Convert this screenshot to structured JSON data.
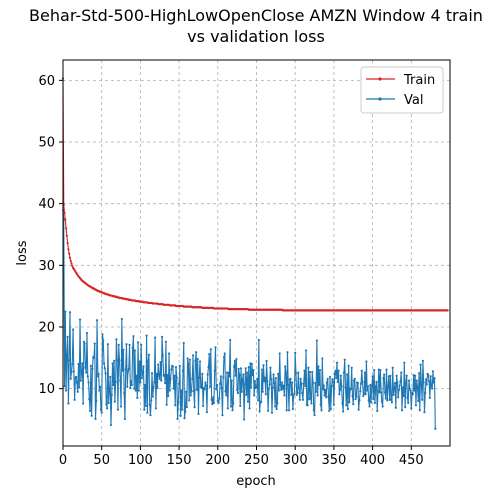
{
  "chart_data": {
    "type": "line",
    "title_lines": [
      "Behar-Std-500-HighLowOpenClose AMZN Window 4 train",
      "vs validation loss"
    ],
    "xlabel": "epoch",
    "ylabel": "loss",
    "xlim": [
      0,
      500
    ],
    "ylim": [
      0.7,
      63.3
    ],
    "xticks": [
      0,
      50,
      100,
      150,
      200,
      250,
      300,
      350,
      400,
      450
    ],
    "xtick_labels": [
      "0",
      "50",
      "100",
      "150",
      "200",
      "250",
      "300",
      "350",
      "400",
      "450"
    ],
    "yticks": [
      10,
      20,
      30,
      40,
      50,
      60
    ],
    "ytick_labels": [
      "10",
      "20",
      "30",
      "40",
      "50",
      "60"
    ],
    "grid": true,
    "legend_position": "top-right",
    "series": [
      {
        "name": "Train",
        "color": "#d62728",
        "x_start": 0,
        "x_step": 1,
        "values": [
          60.3,
          39.8,
          38.5,
          37.4,
          36.0,
          34.8,
          33.6,
          32.6,
          31.9,
          31.2,
          30.7,
          30.3,
          29.9,
          29.6,
          29.4,
          29.2,
          29.0,
          28.8,
          28.6,
          28.4,
          28.2,
          28.1,
          27.9,
          27.8,
          27.6,
          27.5,
          27.4,
          27.3,
          27.2,
          27.1,
          27.0,
          26.9,
          26.8,
          26.7,
          26.6,
          26.6,
          26.5,
          26.4,
          26.3,
          26.3,
          26.2,
          26.1,
          26.1,
          26.0,
          25.9,
          25.9,
          25.8,
          25.8,
          25.7,
          25.7,
          25.6,
          25.6,
          25.5,
          25.5,
          25.4,
          25.4,
          25.3,
          25.3,
          25.3,
          25.2,
          25.2,
          25.1,
          25.1,
          25.1,
          25.0,
          25.0,
          25.0,
          24.9,
          24.9,
          24.9,
          24.8,
          24.8,
          24.8,
          24.7,
          24.7,
          24.7,
          24.7,
          24.6,
          24.6,
          24.6,
          24.6,
          24.5,
          24.5,
          24.5,
          24.5,
          24.4,
          24.4,
          24.4,
          24.4,
          24.3,
          24.3,
          24.3,
          24.3,
          24.3,
          24.2,
          24.2,
          24.2,
          24.2,
          24.2,
          24.1,
          24.1,
          24.1,
          24.1,
          24.1,
          24.0,
          24.0,
          24.0,
          24.0,
          24.0,
          24.0,
          23.9,
          23.9,
          23.9,
          23.9,
          23.9,
          23.9,
          23.8,
          23.8,
          23.8,
          23.8,
          23.8,
          23.8,
          23.8,
          23.7,
          23.7,
          23.7,
          23.7,
          23.7,
          23.7,
          23.7,
          23.6,
          23.6,
          23.6,
          23.6,
          23.6,
          23.6,
          23.6,
          23.6,
          23.5,
          23.5,
          23.5,
          23.5,
          23.5,
          23.5,
          23.5,
          23.5,
          23.4,
          23.4,
          23.4,
          23.4,
          23.4,
          23.4,
          23.4,
          23.4,
          23.4,
          23.4,
          23.3,
          23.3,
          23.3,
          23.3,
          23.3,
          23.3,
          23.3,
          23.3,
          23.3,
          23.3,
          23.3,
          23.2,
          23.2,
          23.2,
          23.2,
          23.2,
          23.2,
          23.2,
          23.2,
          23.2,
          23.2,
          23.2,
          23.2,
          23.2,
          23.1,
          23.1,
          23.1,
          23.1,
          23.1,
          23.1,
          23.1,
          23.1,
          23.1,
          23.1,
          23.1,
          23.1,
          23.1,
          23.1,
          23.1,
          23.0,
          23.0,
          23.0,
          23.0,
          23.0,
          23.0,
          23.0,
          23.0,
          23.0,
          23.0,
          23.0,
          23.0,
          23.0,
          23.0,
          23.0,
          23.0,
          23.0,
          23.0,
          23.0,
          22.9,
          22.9,
          22.9,
          22.9,
          22.9,
          22.9,
          22.9,
          22.9,
          22.9,
          22.9,
          22.9,
          22.9,
          22.9,
          22.9,
          22.9,
          22.9,
          22.9,
          22.9,
          22.9,
          22.9,
          22.9,
          22.9,
          22.9,
          22.9,
          22.9,
          22.9,
          22.8,
          22.8,
          22.8,
          22.8,
          22.8,
          22.8,
          22.8,
          22.8,
          22.8,
          22.8,
          22.8,
          22.8,
          22.8,
          22.8,
          22.8,
          22.8,
          22.8,
          22.8,
          22.8,
          22.8,
          22.8,
          22.8,
          22.8,
          22.8,
          22.8,
          22.8,
          22.8,
          22.8,
          22.8,
          22.8,
          22.8,
          22.8,
          22.8,
          22.8,
          22.8,
          22.8,
          22.8,
          22.8,
          22.8,
          22.8,
          22.8,
          22.8,
          22.8,
          22.8,
          22.7,
          22.7,
          22.7,
          22.7,
          22.7,
          22.7,
          22.7,
          22.7,
          22.7,
          22.7,
          22.7,
          22.7,
          22.7,
          22.7,
          22.7,
          22.7,
          22.7,
          22.7,
          22.7,
          22.7,
          22.7,
          22.7,
          22.7,
          22.7,
          22.7,
          22.7,
          22.7,
          22.7,
          22.7,
          22.7,
          22.7,
          22.7,
          22.7,
          22.7,
          22.7,
          22.7,
          22.7,
          22.7,
          22.7,
          22.7,
          22.7,
          22.7,
          22.7,
          22.7,
          22.7,
          22.7,
          22.7,
          22.7,
          22.7,
          22.7,
          22.7,
          22.7,
          22.7,
          22.7,
          22.7,
          22.7,
          22.7,
          22.7,
          22.7,
          22.7,
          22.7,
          22.7,
          22.7,
          22.7,
          22.7,
          22.7,
          22.7,
          22.7,
          22.7,
          22.7,
          22.7,
          22.7,
          22.7,
          22.7,
          22.7,
          22.7,
          22.7,
          22.7,
          22.7,
          22.7,
          22.7,
          22.7,
          22.7,
          22.7,
          22.7,
          22.7,
          22.7,
          22.7,
          22.7,
          22.7,
          22.7,
          22.7,
          22.7,
          22.7,
          22.7,
          22.7,
          22.7,
          22.7,
          22.7,
          22.7,
          22.7,
          22.7,
          22.7,
          22.7,
          22.7,
          22.7,
          22.7,
          22.7,
          22.7,
          22.7,
          22.7,
          22.7,
          22.7,
          22.7,
          22.7,
          22.7,
          22.7,
          22.7,
          22.7,
          22.7,
          22.7,
          22.7,
          22.7,
          22.7,
          22.7,
          22.7,
          22.7,
          22.7,
          22.7,
          22.7,
          22.7,
          22.7,
          22.7,
          22.7,
          22.7,
          22.7,
          22.7,
          22.7,
          22.7,
          22.7,
          22.7,
          22.7,
          22.7,
          22.7,
          22.7,
          22.7,
          22.7,
          22.7,
          22.7,
          22.7,
          22.7,
          22.7,
          22.7,
          22.7,
          22.7,
          22.7,
          22.7,
          22.7,
          22.7,
          22.7,
          22.7,
          22.7,
          22.7,
          22.7,
          22.7,
          22.7,
          22.7,
          22.7,
          22.7,
          22.7,
          22.7,
          22.7,
          22.7,
          22.7,
          22.7,
          22.7,
          22.7,
          22.7,
          22.7,
          22.7,
          22.7,
          22.7,
          22.7,
          22.7,
          22.7,
          22.7,
          22.7,
          22.7,
          22.7,
          22.7,
          22.7,
          22.7,
          22.7,
          22.7,
          22.7,
          22.7,
          22.7,
          22.7,
          22.7,
          22.7,
          22.7,
          22.7,
          22.7,
          22.7,
          22.7,
          22.7,
          22.7,
          22.7,
          22.7,
          22.7,
          22.7,
          22.7,
          22.7,
          22.7
        ]
      },
      {
        "name": "Val",
        "color": "#1f77b4",
        "x_start": 0,
        "x_step": 1,
        "values": [
          38.9,
          37.5,
          10.4,
          22.5,
          9.7,
          15.6,
          18.4,
          7.6,
          14.6,
          22.4,
          11.6,
          12.7,
          14.0,
          19.6,
          12.8,
          8.2,
          11.8,
          11.9,
          11.0,
          9.5,
          14.0,
          10.2,
          21.2,
          11.3,
          12.6,
          14.1,
          7.6,
          17.6,
          17.3,
          13.4,
          12.6,
          19.0,
          12.0,
          11.0,
          8.3,
          6.4,
          13.7,
          5.6,
          13.2,
          15.1,
          15.0,
          17.3,
          5.1,
          8.0,
          21.1,
          12.0,
          12.4,
          9.7,
          10.3,
          6.6,
          6.1,
          18.8,
          17.8,
          14.1,
          13.3,
          12.5,
          7.5,
          6.8,
          17.2,
          7.7,
          9.6,
          11.9,
          4.1,
          9.0,
          14.1,
          10.6,
          14.5,
          7.9,
          11.1,
          18.0,
          14.6,
          6.6,
          17.1,
          14.6,
          11.3,
          7.1,
          21.3,
          12.9,
          16.3,
          9.3,
          5.1,
          13.1,
          17.2,
          10.3,
          12.8,
          13.2,
          17.1,
          10.1,
          11.2,
          10.6,
          16.6,
          18.5,
          10.0,
          16.2,
          9.7,
          12.1,
          8.5,
          17.5,
          9.7,
          14.4,
          11.0,
          17.1,
          11.7,
          12.6,
          13.6,
          6.6,
          10.6,
          7.2,
          18.6,
          6.1,
          14.5,
          15.5,
          7.4,
          5.7,
          8.1,
          12.5,
          8.7,
          10.3,
          11.0,
          18.3,
          6.8,
          12.4,
          10.1,
          13.9,
          12.1,
          11.6,
          14.3,
          11.3,
          18.4,
          15.4,
          12.1,
          12.2,
          10.9,
          17.6,
          7.4,
          12.2,
          8.8,
          15.7,
          9.7,
          11.6,
          13.1,
          13.7,
          13.6,
          10.0,
          12.1,
          7.3,
          13.5,
          11.8,
          5.1,
          7.9,
          10.8,
          13.7,
          5.6,
          9.7,
          6.6,
          12.9,
          17.4,
          5.2,
          6.3,
          9.5,
          7.0,
          14.9,
          14.0,
          8.1,
          14.7,
          8.9,
          9.6,
          11.6,
          15.4,
          9.6,
          7.0,
          14.5,
          15.9,
          9.8,
          14.8,
          5.9,
          11.8,
          14.4,
          10.3,
          10.1,
          12.4,
          7.2,
          10.1,
          9.9,
          11.0,
          10.5,
          6.2,
          12.3,
          13.5,
          15.6,
          10.3,
          16.4,
          8.2,
          7.5,
          8.6,
          7.7,
          12.9,
          16.7,
          9.9,
          10.6,
          8.0,
          7.7,
          8.4,
          10.8,
          12.0,
          10.1,
          5.7,
          11.8,
          15.1,
          15.7,
          9.6,
          8.9,
          12.6,
          6.8,
          12.6,
          12.0,
          17.9,
          7.1,
          11.3,
          6.5,
          7.6,
          13.6,
          14.5,
          12.1,
          14.8,
          9.8,
          9.3,
          13.2,
          12.2,
          7.2,
          13.3,
          9.5,
          11.5,
          12.3,
          5.0,
          10.7,
          13.3,
          9.0,
          12.6,
          7.9,
          13.5,
          6.8,
          14.1,
          10.2,
          14.0,
          12.2,
          13.0,
          8.9,
          11.2,
          10.1,
          10.2,
          11.6,
          8.1,
          17.9,
          6.3,
          7.9,
          7.8,
          13.1,
          9.5,
          13.8,
          11.2,
          11.8,
          9.1,
          14.5,
          11.2,
          6.4,
          10.0,
          10.7,
          13.4,
          11.5,
          6.1,
          10.2,
          12.3,
          10.9,
          7.1,
          11.7,
          6.7,
          7.7,
          12.4,
          9.7,
          15.7,
          10.6,
          9.8,
          11.0,
          10.0,
          10.5,
          8.9,
          13.6,
          12.6,
          6.5,
          15.9,
          10.6,
          6.5,
          11.5,
          11.6,
          9.0,
          11.0,
          6.7,
          8.9,
          9.2,
          15.8,
          12.5,
          9.0,
          9.3,
          12.6,
          10.2,
          8.2,
          11.6,
          10.8,
          9.3,
          8.2,
          10.8,
          12.9,
          10.4,
          16.2,
          7.4,
          7.3,
          13.4,
          8.3,
          12.7,
          8.5,
          7.6,
          12.7,
          11.0,
          6.5,
          5.7,
          10.9,
          9.5,
          17.8,
          8.9,
          13.6,
          10.6,
          13.0,
          7.4,
          6.5,
          14.9,
          9.9,
          10.5,
          8.9,
          9.8,
          8.6,
          11.0,
          11.6,
          8.7,
          6.4,
          11.9,
          6.7,
          10.4,
          11.5,
          11.1,
          7.4,
          12.4,
          12.9,
          11.7,
          14.2,
          11.1,
          12.9,
          9.1,
          9.8,
          12.1,
          10.4,
          7.6,
          6.3,
          12.6,
          14.7,
          10.2,
          7.3,
          12.3,
          6.7,
          13.7,
          7.8,
          10.0,
          9.9,
          13.4,
          8.8,
          7.5,
          11.3,
          11.6,
          8.3,
          8.7,
          11.0,
          10.9,
          6.6,
          8.1,
          9.6,
          10.8,
          12.9,
          11.1,
          8.8,
          9.2,
          12.6,
          9.1,
          14.4,
          9.7,
          10.4,
          8.1,
          7.1,
          10.6,
          7.8,
          10.4,
          12.0,
          8.3,
          13.0,
          7.7,
          10.3,
          11.1,
          6.4,
          9.6,
          13.1,
          9.4,
          13.0,
          9.4,
          7.9,
          7.1,
          11.7,
          12.3,
          9.4,
          8.4,
          13.1,
          8.1,
          10.4,
          12.0,
          8.2,
          12.1,
          8.2,
          7.8,
          13.4,
          9.0,
          10.0,
          10.9,
          6.9,
          12.1,
          11.0,
          8.6,
          9.8,
          10.5,
          11.2,
          12.6,
          6.5,
          10.2,
          8.8,
          14.2,
          7.0,
          11.1,
          12.1,
          8.5,
          7.7,
          11.3,
          10.0,
          9.7,
          6.8,
          9.3,
          9.1,
          12.2,
          9.7,
          12.1,
          7.3,
          11.3,
          10.3,
          8.0,
          12.5,
          6.5,
          13.9,
          10.6,
          8.2,
          14.5,
          11.0,
          6.2,
          9.3,
          11.5,
          10.7,
          12.4,
          12.2,
          11.2,
          8.5,
          12.0,
          10.4,
          10.0,
          12.8,
          11.0,
          11.7,
          3.5
        ]
      }
    ]
  }
}
